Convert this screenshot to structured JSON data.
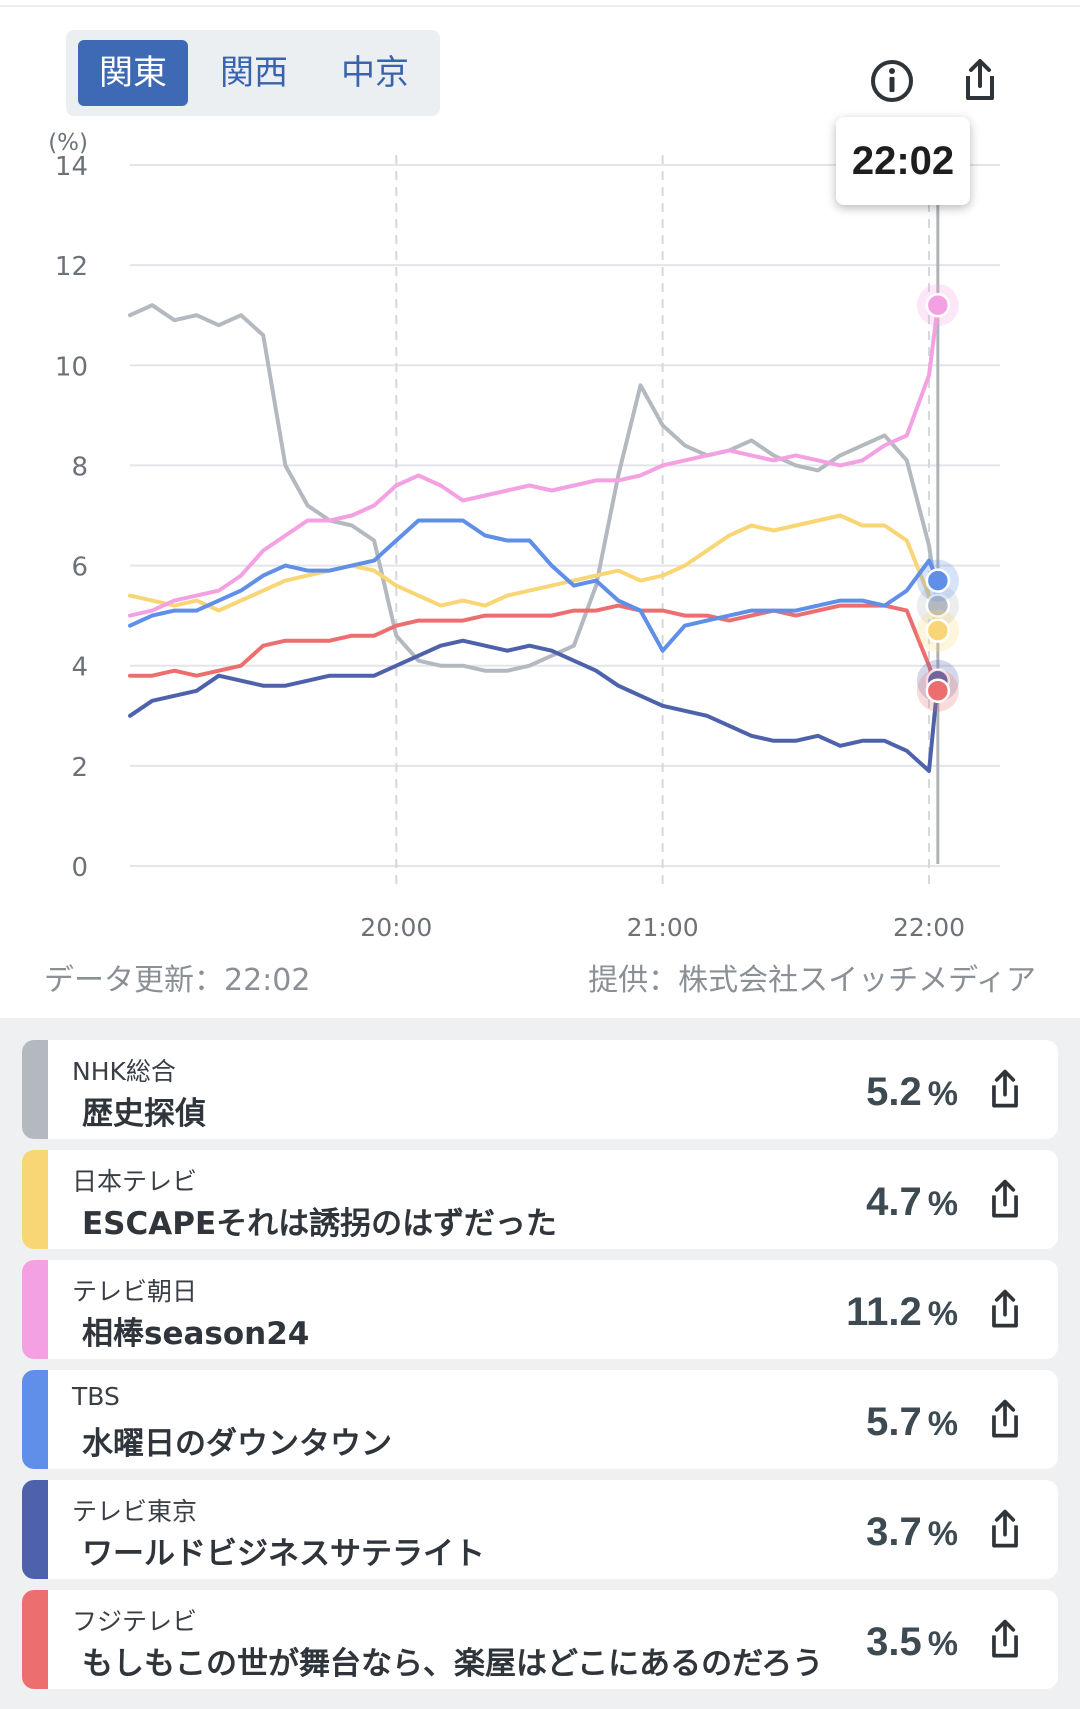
{
  "tabs": [
    {
      "label": "関東",
      "active": true
    },
    {
      "label": "関西",
      "active": false
    },
    {
      "label": "中京",
      "active": false
    }
  ],
  "icons": {
    "info": "info-icon",
    "share": "share-icon"
  },
  "tooltip": {
    "time": "22:02"
  },
  "footer": {
    "updated": "データ更新：22:02",
    "provider": "提供：株式会社スイッチメディア"
  },
  "chart_data": {
    "type": "line",
    "ylabel": "(%)",
    "ylim": [
      0,
      14
    ],
    "yticks": [
      "0",
      "2",
      "4",
      "6",
      "8",
      "10",
      "12",
      "14"
    ],
    "xticks": [
      "20:00",
      "21:00",
      "22:00"
    ],
    "x_range_minutes": [
      "19:00",
      "22:02"
    ],
    "grid": true,
    "marker_time": "22:02",
    "series": [
      {
        "name": "NHK総合",
        "color": "#b4b9c0",
        "x": [
          "19:00",
          "19:05",
          "19:10",
          "19:15",
          "19:20",
          "19:25",
          "19:30",
          "19:35",
          "19:40",
          "19:45",
          "19:50",
          "19:55",
          "20:00",
          "20:05",
          "20:10",
          "20:15",
          "20:20",
          "20:25",
          "20:30",
          "20:35",
          "20:40",
          "20:45",
          "20:50",
          "20:55",
          "21:00",
          "21:05",
          "21:10",
          "21:15",
          "21:20",
          "21:25",
          "21:30",
          "21:35",
          "21:40",
          "21:45",
          "21:50",
          "21:55",
          "22:00",
          "22:02"
        ],
        "values": [
          11.0,
          11.2,
          10.9,
          11.0,
          10.8,
          11.0,
          10.6,
          8.0,
          7.2,
          6.9,
          6.8,
          6.5,
          4.6,
          4.1,
          4.0,
          4.0,
          3.9,
          3.9,
          4.0,
          4.2,
          4.4,
          5.6,
          7.8,
          9.6,
          8.8,
          8.4,
          8.2,
          8.3,
          8.5,
          8.2,
          8.0,
          7.9,
          8.2,
          8.4,
          8.6,
          8.1,
          6.4,
          5.2
        ]
      },
      {
        "name": "日本テレビ",
        "color": "#f8d675",
        "x": [
          "19:00",
          "19:05",
          "19:10",
          "19:15",
          "19:20",
          "19:25",
          "19:30",
          "19:35",
          "19:40",
          "19:45",
          "19:50",
          "19:55",
          "20:00",
          "20:05",
          "20:10",
          "20:15",
          "20:20",
          "20:25",
          "20:30",
          "20:35",
          "20:40",
          "20:45",
          "20:50",
          "20:55",
          "21:00",
          "21:05",
          "21:10",
          "21:15",
          "21:20",
          "21:25",
          "21:30",
          "21:35",
          "21:40",
          "21:45",
          "21:50",
          "21:55",
          "22:00",
          "22:02"
        ],
        "values": [
          5.4,
          5.3,
          5.2,
          5.3,
          5.1,
          5.3,
          5.5,
          5.7,
          5.8,
          5.9,
          6.0,
          5.9,
          5.6,
          5.4,
          5.2,
          5.3,
          5.2,
          5.4,
          5.5,
          5.6,
          5.7,
          5.8,
          5.9,
          5.7,
          5.8,
          6.0,
          6.3,
          6.6,
          6.8,
          6.7,
          6.8,
          6.9,
          7.0,
          6.8,
          6.8,
          6.5,
          5.4,
          4.7
        ]
      },
      {
        "name": "テレビ朝日",
        "color": "#f3a1e3",
        "x": [
          "19:00",
          "19:05",
          "19:10",
          "19:15",
          "19:20",
          "19:25",
          "19:30",
          "19:35",
          "19:40",
          "19:45",
          "19:50",
          "19:55",
          "20:00",
          "20:05",
          "20:10",
          "20:15",
          "20:20",
          "20:25",
          "20:30",
          "20:35",
          "20:40",
          "20:45",
          "20:50",
          "20:55",
          "21:00",
          "21:05",
          "21:10",
          "21:15",
          "21:20",
          "21:25",
          "21:30",
          "21:35",
          "21:40",
          "21:45",
          "21:50",
          "21:55",
          "22:00",
          "22:02"
        ],
        "values": [
          5.0,
          5.1,
          5.3,
          5.4,
          5.5,
          5.8,
          6.3,
          6.6,
          6.9,
          6.9,
          7.0,
          7.2,
          7.6,
          7.8,
          7.6,
          7.3,
          7.4,
          7.5,
          7.6,
          7.5,
          7.6,
          7.7,
          7.7,
          7.8,
          8.0,
          8.1,
          8.2,
          8.3,
          8.2,
          8.1,
          8.2,
          8.1,
          8.0,
          8.1,
          8.4,
          8.6,
          9.8,
          11.2
        ]
      },
      {
        "name": "TBS",
        "color": "#5f8fe8",
        "x": [
          "19:00",
          "19:05",
          "19:10",
          "19:15",
          "19:20",
          "19:25",
          "19:30",
          "19:35",
          "19:40",
          "19:45",
          "19:50",
          "19:55",
          "20:00",
          "20:05",
          "20:10",
          "20:15",
          "20:20",
          "20:25",
          "20:30",
          "20:35",
          "20:40",
          "20:45",
          "20:50",
          "20:55",
          "21:00",
          "21:05",
          "21:10",
          "21:15",
          "21:20",
          "21:25",
          "21:30",
          "21:35",
          "21:40",
          "21:45",
          "21:50",
          "21:55",
          "22:00",
          "22:02"
        ],
        "values": [
          4.8,
          5.0,
          5.1,
          5.1,
          5.3,
          5.5,
          5.8,
          6.0,
          5.9,
          5.9,
          6.0,
          6.1,
          6.5,
          6.9,
          6.9,
          6.9,
          6.6,
          6.5,
          6.5,
          6.0,
          5.6,
          5.7,
          5.3,
          5.1,
          4.3,
          4.8,
          4.9,
          5.0,
          5.1,
          5.1,
          5.1,
          5.2,
          5.3,
          5.3,
          5.2,
          5.5,
          6.1,
          5.7
        ]
      },
      {
        "name": "テレビ東京",
        "color": "#4e62ac",
        "x": [
          "19:00",
          "19:05",
          "19:10",
          "19:15",
          "19:20",
          "19:25",
          "19:30",
          "19:35",
          "19:40",
          "19:45",
          "19:50",
          "19:55",
          "20:00",
          "20:05",
          "20:10",
          "20:15",
          "20:20",
          "20:25",
          "20:30",
          "20:35",
          "20:40",
          "20:45",
          "20:50",
          "20:55",
          "21:00",
          "21:05",
          "21:10",
          "21:15",
          "21:20",
          "21:25",
          "21:30",
          "21:35",
          "21:40",
          "21:45",
          "21:50",
          "21:55",
          "22:00",
          "22:02"
        ],
        "values": [
          3.0,
          3.3,
          3.4,
          3.5,
          3.8,
          3.7,
          3.6,
          3.6,
          3.7,
          3.8,
          3.8,
          3.8,
          4.0,
          4.2,
          4.4,
          4.5,
          4.4,
          4.3,
          4.4,
          4.3,
          4.1,
          3.9,
          3.6,
          3.4,
          3.2,
          3.1,
          3.0,
          2.8,
          2.6,
          2.5,
          2.5,
          2.6,
          2.4,
          2.5,
          2.5,
          2.3,
          1.9,
          3.7
        ]
      },
      {
        "name": "フジテレビ",
        "color": "#ec6e6e",
        "x": [
          "19:00",
          "19:05",
          "19:10",
          "19:15",
          "19:20",
          "19:25",
          "19:30",
          "19:35",
          "19:40",
          "19:45",
          "19:50",
          "19:55",
          "20:00",
          "20:05",
          "20:10",
          "20:15",
          "20:20",
          "20:25",
          "20:30",
          "20:35",
          "20:40",
          "20:45",
          "20:50",
          "20:55",
          "21:00",
          "21:05",
          "21:10",
          "21:15",
          "21:20",
          "21:25",
          "21:30",
          "21:35",
          "21:40",
          "21:45",
          "21:50",
          "21:55",
          "22:00",
          "22:02"
        ],
        "values": [
          3.8,
          3.8,
          3.9,
          3.8,
          3.9,
          4.0,
          4.4,
          4.5,
          4.5,
          4.5,
          4.6,
          4.6,
          4.8,
          4.9,
          4.9,
          4.9,
          5.0,
          5.0,
          5.0,
          5.0,
          5.1,
          5.1,
          5.2,
          5.1,
          5.1,
          5.0,
          5.0,
          4.9,
          5.0,
          5.1,
          5.0,
          5.1,
          5.2,
          5.2,
          5.2,
          5.1,
          4.0,
          3.5
        ]
      }
    ]
  },
  "ratings": [
    {
      "channel": "NHK総合",
      "program": "歴史探偵",
      "value": "5.2",
      "unit": "%",
      "color": "#b4b9c0"
    },
    {
      "channel": "日本テレビ",
      "program": "ESCAPEそれは誘拐のはずだった",
      "value": "4.7",
      "unit": "%",
      "color": "#f8d675"
    },
    {
      "channel": "テレビ朝日",
      "program": "相棒season24",
      "value": "11.2",
      "unit": "%",
      "color": "#f3a1e3"
    },
    {
      "channel": "TBS",
      "program": "水曜日のダウンタウン",
      "value": "5.7",
      "unit": "%",
      "color": "#5f8fe8"
    },
    {
      "channel": "テレビ東京",
      "program": "ワールドビジネスサテライト",
      "value": "3.7",
      "unit": "%",
      "color": "#4e62ac"
    },
    {
      "channel": "フジテレビ",
      "program": "もしもこの世が舞台なら、楽屋はどこにあるのだろう",
      "value": "3.5",
      "unit": "%",
      "color": "#ec6e6e"
    }
  ]
}
